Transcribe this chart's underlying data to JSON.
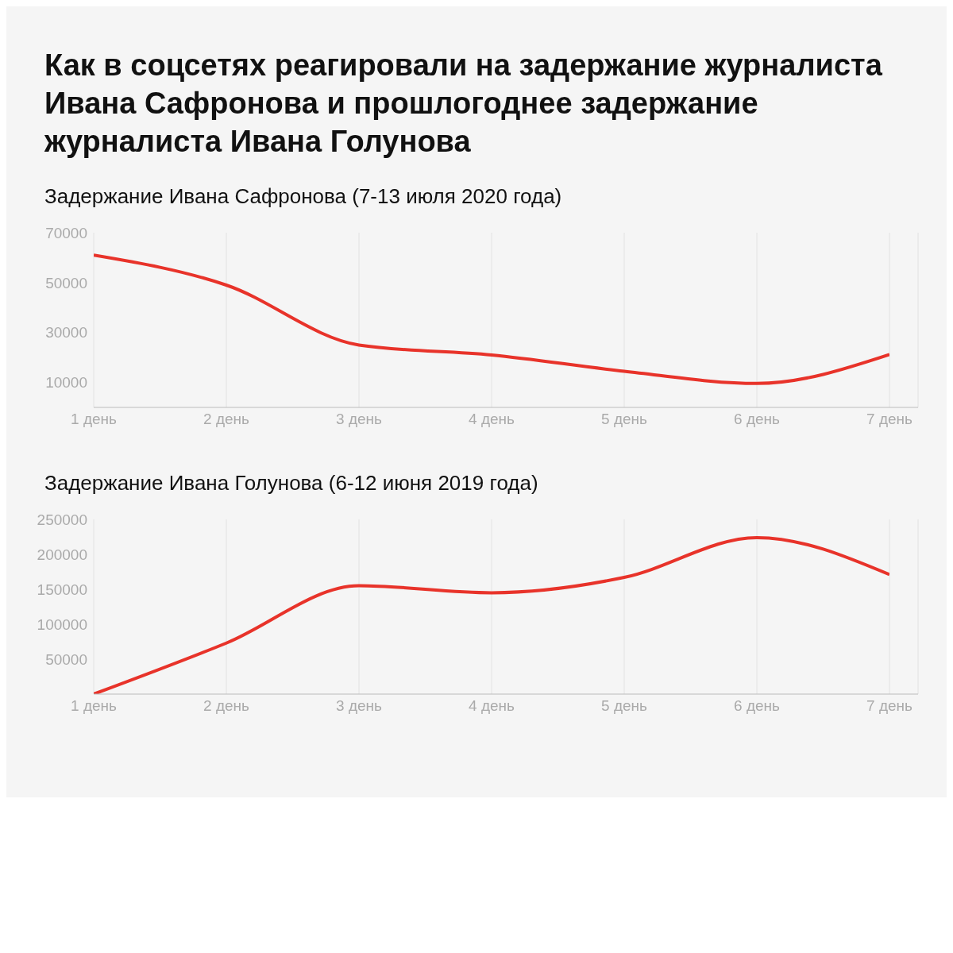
{
  "chart_data": [
    {
      "type": "line",
      "title": "Как в соцсетях реагировали на задержание журналиста Ивана Сафронова и прошлогоднее задержание журналиста Ивана Голунова",
      "subtitle": "Задержание Ивана Сафронова (7-13 июля 2020 года)",
      "categories": [
        "1 день",
        "2 день",
        "3 день",
        "4 день",
        "5 день",
        "6 день",
        "7 день"
      ],
      "values": [
        61000,
        49000,
        25000,
        21000,
        14500,
        9600,
        21200
      ],
      "color": "#e8332a",
      "ylim": [
        0,
        70000
      ],
      "yticks": [
        10000,
        30000,
        50000,
        70000
      ],
      "grid": "x"
    },
    {
      "type": "line",
      "subtitle": "Задержание Ивана Голунова (6-12 июня 2019 года)",
      "categories": [
        "1 день",
        "2 день",
        "3 день",
        "4 день",
        "5 день",
        "6 день",
        "7 день"
      ],
      "values": [
        0,
        73000,
        155000,
        145000,
        167000,
        224000,
        171000
      ],
      "color": "#e8332a",
      "ylim": [
        0,
        250000
      ],
      "yticks": [
        50000,
        100000,
        150000,
        200000,
        250000
      ],
      "grid": "x"
    }
  ]
}
